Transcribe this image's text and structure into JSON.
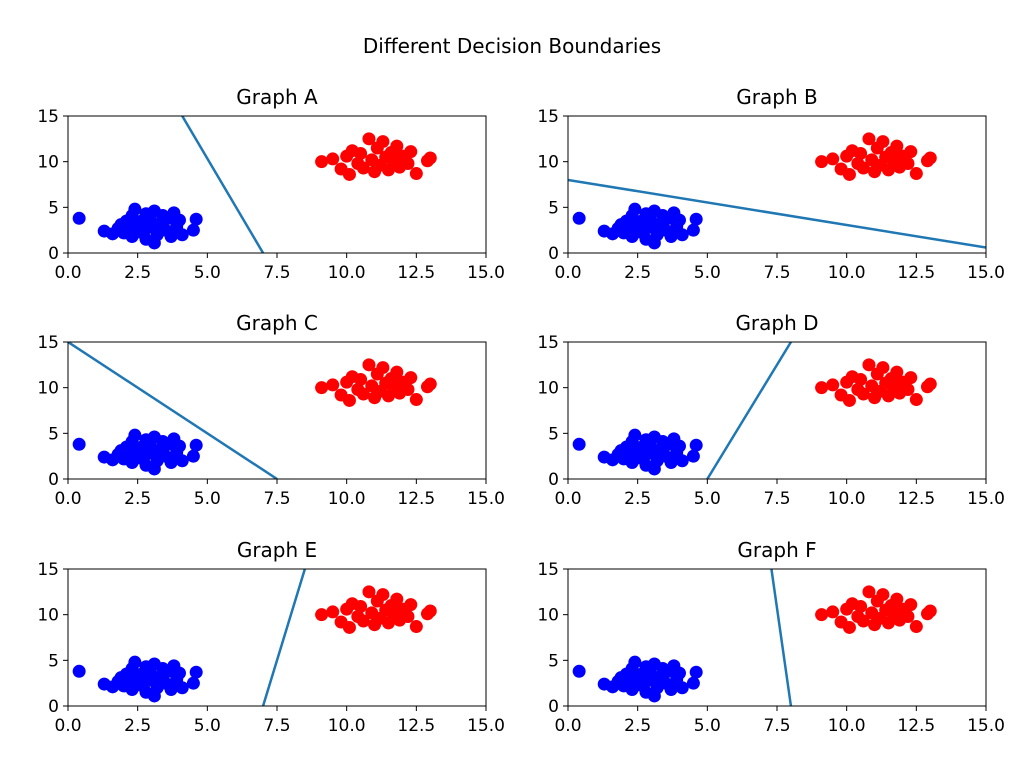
{
  "figure": {
    "title": "Different Decision Boundaries"
  },
  "colors": {
    "class_a": "#0000ff",
    "class_b": "#ff0000",
    "boundary": "#1f77b4"
  },
  "cluster_points": {
    "blue": [
      [
        0.4,
        3.8
      ],
      [
        1.3,
        2.4
      ],
      [
        1.6,
        2.1
      ],
      [
        1.8,
        2.7
      ],
      [
        1.9,
        3.1
      ],
      [
        2.0,
        2.2
      ],
      [
        2.1,
        3.5
      ],
      [
        2.2,
        2.6
      ],
      [
        2.3,
        1.8
      ],
      [
        2.3,
        4.1
      ],
      [
        2.4,
        4.8
      ],
      [
        2.5,
        3.0
      ],
      [
        2.6,
        2.3
      ],
      [
        2.7,
        3.6
      ],
      [
        2.8,
        1.5
      ],
      [
        2.8,
        4.3
      ],
      [
        2.9,
        2.8
      ],
      [
        3.0,
        3.4
      ],
      [
        3.1,
        1.1
      ],
      [
        3.1,
        4.6
      ],
      [
        3.2,
        2.0
      ],
      [
        3.3,
        3.1
      ],
      [
        3.4,
        4.1
      ],
      [
        3.5,
        2.5
      ],
      [
        3.6,
        3.8
      ],
      [
        3.7,
        1.8
      ],
      [
        3.8,
        4.4
      ],
      [
        3.9,
        2.9
      ],
      [
        4.0,
        3.6
      ],
      [
        4.1,
        2.0
      ],
      [
        4.5,
        2.5
      ],
      [
        4.6,
        3.7
      ]
    ],
    "red": [
      [
        9.1,
        10.0
      ],
      [
        9.5,
        10.3
      ],
      [
        9.8,
        9.2
      ],
      [
        10.0,
        10.6
      ],
      [
        10.1,
        8.6
      ],
      [
        10.2,
        11.2
      ],
      [
        10.4,
        9.8
      ],
      [
        10.5,
        10.9
      ],
      [
        10.6,
        9.3
      ],
      [
        10.8,
        12.5
      ],
      [
        10.9,
        10.2
      ],
      [
        11.0,
        8.9
      ],
      [
        11.1,
        11.5
      ],
      [
        11.2,
        9.6
      ],
      [
        11.3,
        12.2
      ],
      [
        11.4,
        10.5
      ],
      [
        11.5,
        9.1
      ],
      [
        11.6,
        11.0
      ],
      [
        11.7,
        10.0
      ],
      [
        11.8,
        11.7
      ],
      [
        11.9,
        9.4
      ],
      [
        12.0,
        10.6
      ],
      [
        12.2,
        9.8
      ],
      [
        12.3,
        11.1
      ],
      [
        12.5,
        8.7
      ],
      [
        12.9,
        10.1
      ],
      [
        13.0,
        10.4
      ]
    ]
  },
  "chart_data": [
    {
      "type": "scatter",
      "title": "Graph A",
      "xlim": [
        0,
        15
      ],
      "ylim": [
        0,
        15
      ],
      "xticks": [
        "0.0",
        "2.5",
        "5.0",
        "7.5",
        "10.0",
        "12.5",
        "15.0"
      ],
      "yticks": [
        "0",
        "5",
        "10",
        "15"
      ],
      "boundary": {
        "x": [
          4.1,
          7.0
        ],
        "y": [
          15,
          0
        ]
      }
    },
    {
      "type": "scatter",
      "title": "Graph B",
      "xlim": [
        0,
        15
      ],
      "ylim": [
        0,
        15
      ],
      "xticks": [
        "0.0",
        "2.5",
        "5.0",
        "7.5",
        "10.0",
        "12.5",
        "15.0"
      ],
      "yticks": [
        "0",
        "5",
        "10",
        "15"
      ],
      "boundary": {
        "x": [
          0,
          15
        ],
        "y": [
          8.0,
          0.6
        ]
      }
    },
    {
      "type": "scatter",
      "title": "Graph C",
      "xlim": [
        0,
        15
      ],
      "ylim": [
        0,
        15
      ],
      "xticks": [
        "0.0",
        "2.5",
        "5.0",
        "7.5",
        "10.0",
        "12.5",
        "15.0"
      ],
      "yticks": [
        "0",
        "5",
        "10",
        "15"
      ],
      "boundary": {
        "x": [
          0,
          7.5
        ],
        "y": [
          15,
          0
        ]
      }
    },
    {
      "type": "scatter",
      "title": "Graph D",
      "xlim": [
        0,
        15
      ],
      "ylim": [
        0,
        15
      ],
      "xticks": [
        "0.0",
        "2.5",
        "5.0",
        "7.5",
        "10.0",
        "12.5",
        "15.0"
      ],
      "yticks": [
        "0",
        "5",
        "10",
        "15"
      ],
      "boundary": {
        "x": [
          5.0,
          8.0
        ],
        "y": [
          0,
          15
        ]
      }
    },
    {
      "type": "scatter",
      "title": "Graph E",
      "xlim": [
        0,
        15
      ],
      "ylim": [
        0,
        15
      ],
      "xticks": [
        "0.0",
        "2.5",
        "5.0",
        "7.5",
        "10.0",
        "12.5",
        "15.0"
      ],
      "yticks": [
        "0",
        "5",
        "10",
        "15"
      ],
      "boundary": {
        "x": [
          7.0,
          8.5
        ],
        "y": [
          0,
          15
        ]
      }
    },
    {
      "type": "scatter",
      "title": "Graph F",
      "xlim": [
        0,
        15
      ],
      "ylim": [
        0,
        15
      ],
      "xticks": [
        "0.0",
        "2.5",
        "5.0",
        "7.5",
        "10.0",
        "12.5",
        "15.0"
      ],
      "yticks": [
        "0",
        "5",
        "10",
        "15"
      ],
      "boundary": {
        "x": [
          7.3,
          8.0
        ],
        "y": [
          15,
          0
        ]
      }
    }
  ]
}
